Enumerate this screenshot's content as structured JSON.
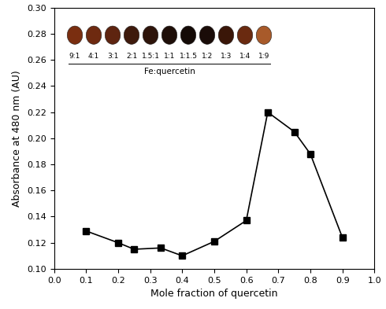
{
  "chart_data": {
    "type": "line",
    "x_label": "Mole fraction of quercetin",
    "y_label": "Absorbance at 480 nm (AU)",
    "x": [
      0.1,
      0.2,
      0.25,
      0.333,
      0.4,
      0.5,
      0.6,
      0.667,
      0.75,
      0.8,
      0.9
    ],
    "values": [
      0.129,
      0.12,
      0.115,
      0.116,
      0.11,
      0.121,
      0.137,
      0.22,
      0.205,
      0.188,
      0.124
    ],
    "color": "#000000",
    "marker": "square",
    "line_style": "solid",
    "xlim": [
      0.0,
      1.0
    ],
    "xticks": [
      {
        "value": 0.0,
        "label": "0.0"
      },
      0.1,
      0.2,
      0.3,
      0.4,
      0.5,
      0.6,
      0.7,
      0.8,
      0.9,
      {
        "value": 1.0,
        "label": "1.0"
      }
    ],
    "ylim": [
      0.1,
      0.3
    ],
    "yticks": [
      {
        "value": 0.1,
        "label": "0.10"
      },
      {
        "value": 0.12,
        "label": "0.12"
      },
      {
        "value": 0.14,
        "label": "0.14"
      },
      {
        "value": 0.16,
        "label": "0.16"
      },
      {
        "value": 0.18,
        "label": "0.18"
      },
      {
        "value": 0.2,
        "label": "0.20"
      },
      {
        "value": 0.22,
        "label": "0.22"
      },
      {
        "value": 0.24,
        "label": "0.24"
      },
      {
        "value": 0.26,
        "label": "0.26"
      },
      {
        "value": 0.28,
        "label": "0.28"
      },
      {
        "value": 0.3,
        "label": "0.30"
      }
    ],
    "grid": false,
    "inset": {
      "labels": [
        "9:1",
        "4:1",
        "3:1",
        "2:1",
        "1.5:1",
        "1:1",
        "1:1.5",
        "1:2",
        "1:3",
        "1:4",
        "1:9"
      ],
      "colors": [
        "#7a2e10",
        "#6e2a10",
        "#5e2410",
        "#3e1a0c",
        "#2e140a",
        "#1e0e08",
        "#140a06",
        "#1a0c08",
        "#3a1608",
        "#6a2a10",
        "#a85a2a"
      ],
      "caption": "Fe:quercetin"
    }
  }
}
